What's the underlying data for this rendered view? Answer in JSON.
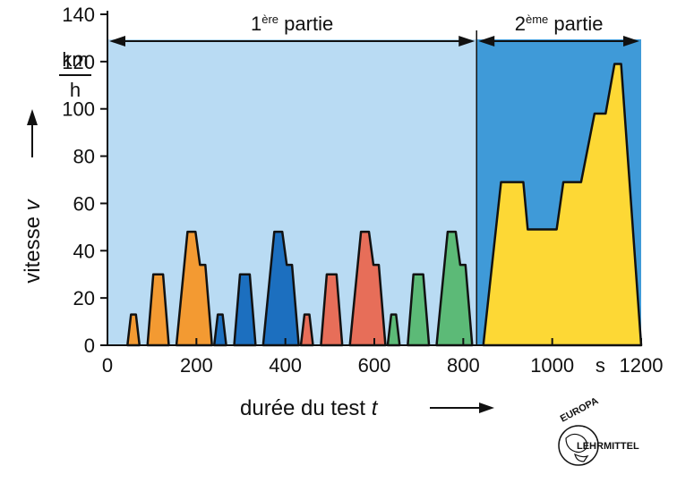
{
  "chart_data": {
    "type": "area",
    "xlabel": "durée du test",
    "xlabel_var": "t",
    "ylabel": "vitesse",
    "ylabel_var": "v",
    "x_unit": "s",
    "y_unit_top": "km",
    "y_unit_bottom": "h",
    "xlim": [
      0,
      1200
    ],
    "ylim": [
      0,
      140
    ],
    "x_ticks": [
      "0",
      "200",
      "400",
      "600",
      "800",
      "1000",
      "1200"
    ],
    "y_ticks": [
      "0",
      "20",
      "40",
      "60",
      "80",
      "100",
      "120",
      "140"
    ],
    "regions": [
      {
        "name_base": "1",
        "name_sup": "ère",
        "name_rest": " partie",
        "x_start": 0,
        "x_end": 830,
        "color": "#b9dbf3"
      },
      {
        "name_base": "2",
        "name_sup": "ème",
        "name_rest": " partie",
        "x_start": 830,
        "x_end": 1200,
        "color": "#3f9ad8"
      }
    ],
    "series": [
      {
        "color": "#f39a32",
        "points": [
          [
            45,
            0
          ],
          [
            53,
            13
          ],
          [
            64,
            13
          ],
          [
            72,
            0
          ]
        ]
      },
      {
        "color": "#f39a32",
        "points": [
          [
            90,
            0
          ],
          [
            103,
            30
          ],
          [
            125,
            30
          ],
          [
            138,
            0
          ]
        ]
      },
      {
        "color": "#f39a32",
        "points": [
          [
            155,
            0
          ],
          [
            180,
            48
          ],
          [
            198,
            48
          ],
          [
            208,
            34
          ],
          [
            220,
            34
          ],
          [
            235,
            0
          ]
        ]
      },
      {
        "color": "#1c6fbf",
        "points": [
          [
            240,
            0
          ],
          [
            248,
            13
          ],
          [
            259,
            13
          ],
          [
            267,
            0
          ]
        ]
      },
      {
        "color": "#1c6fbf",
        "points": [
          [
            285,
            0
          ],
          [
            298,
            30
          ],
          [
            320,
            30
          ],
          [
            333,
            0
          ]
        ]
      },
      {
        "color": "#1c6fbf",
        "points": [
          [
            350,
            0
          ],
          [
            375,
            48
          ],
          [
            393,
            48
          ],
          [
            403,
            34
          ],
          [
            415,
            34
          ],
          [
            430,
            0
          ]
        ]
      },
      {
        "color": "#e76e59",
        "points": [
          [
            435,
            0
          ],
          [
            443,
            13
          ],
          [
            454,
            13
          ],
          [
            462,
            0
          ]
        ]
      },
      {
        "color": "#e76e59",
        "points": [
          [
            480,
            0
          ],
          [
            493,
            30
          ],
          [
            515,
            30
          ],
          [
            528,
            0
          ]
        ]
      },
      {
        "color": "#e76e59",
        "points": [
          [
            545,
            0
          ],
          [
            570,
            48
          ],
          [
            588,
            48
          ],
          [
            598,
            34
          ],
          [
            610,
            34
          ],
          [
            625,
            0
          ]
        ]
      },
      {
        "color": "#5cba77",
        "points": [
          [
            630,
            0
          ],
          [
            638,
            13
          ],
          [
            649,
            13
          ],
          [
            657,
            0
          ]
        ]
      },
      {
        "color": "#5cba77",
        "points": [
          [
            675,
            0
          ],
          [
            688,
            30
          ],
          [
            710,
            30
          ],
          [
            723,
            0
          ]
        ]
      },
      {
        "color": "#5cba77",
        "points": [
          [
            740,
            0
          ],
          [
            765,
            48
          ],
          [
            783,
            48
          ],
          [
            793,
            34
          ],
          [
            805,
            34
          ],
          [
            820,
            0
          ]
        ]
      },
      {
        "color": "#fdd835",
        "points": [
          [
            845,
            0
          ],
          [
            885,
            69
          ],
          [
            935,
            69
          ],
          [
            945,
            49
          ],
          [
            1010,
            49
          ],
          [
            1025,
            69
          ],
          [
            1065,
            69
          ],
          [
            1095,
            98
          ],
          [
            1120,
            98
          ],
          [
            1140,
            119
          ],
          [
            1155,
            119
          ],
          [
            1200,
            0
          ]
        ]
      }
    ]
  },
  "logo": {
    "top": "EUROPA",
    "bottom": "LEHRMITTEL"
  }
}
